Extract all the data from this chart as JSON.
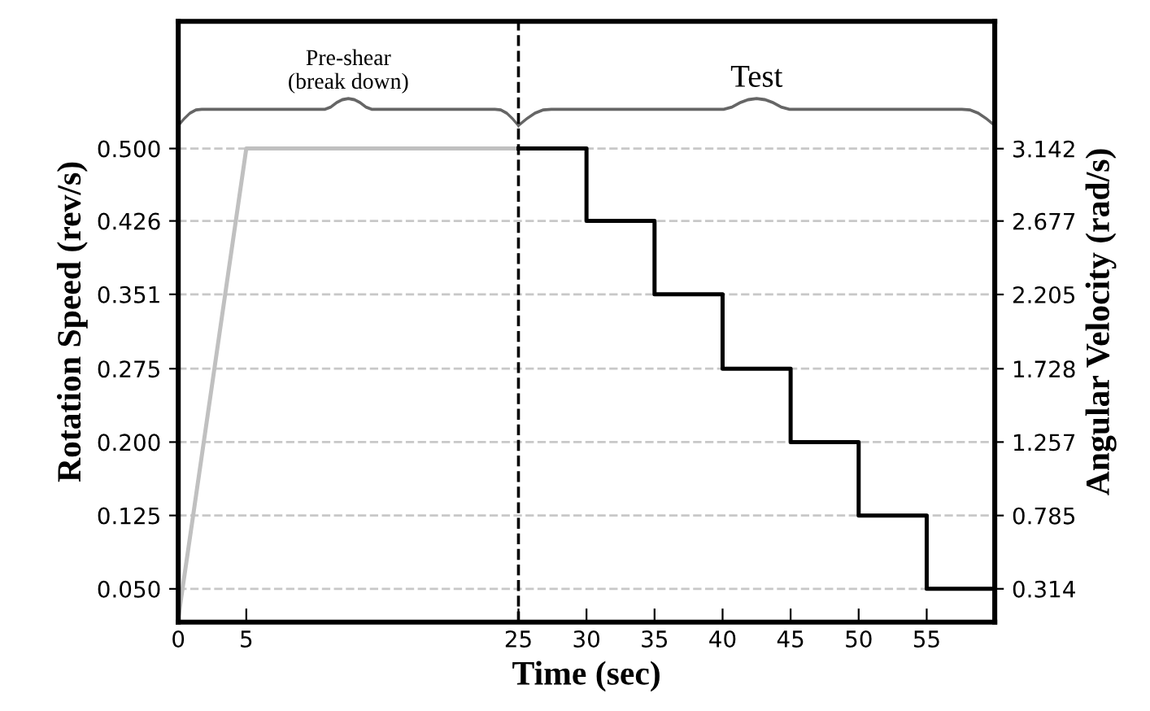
{
  "chart_data": {
    "type": "line",
    "xlabel": "Time (sec)",
    "ylabel": "Rotation Speed (rev/s)",
    "y2label": "Angular Velocity (rad/s)",
    "series": [
      {
        "color": "#c0c0c0",
        "x": [
          0,
          5,
          25
        ],
        "values": [
          0.02,
          0.5,
          0.5
        ]
      },
      {
        "type": "step",
        "color": "#000000",
        "x": [
          25,
          30,
          35,
          40,
          45,
          50,
          55,
          60
        ],
        "values": [
          0.5,
          0.426,
          0.351,
          0.275,
          0.2,
          0.125,
          0.05,
          0.05
        ]
      }
    ],
    "xlim": [
      0,
      60
    ],
    "xticks": [
      0,
      5,
      25,
      30,
      35,
      40,
      45,
      50,
      55
    ],
    "ylim": [
      0.016,
      0.63
    ],
    "yticks": [
      {
        "value": 0.05,
        "label": "0.050"
      },
      0.125,
      {
        "value": 0.2,
        "label": "0.200"
      },
      0.275,
      0.351,
      0.426,
      {
        "value": 0.5,
        "label": "0.500"
      }
    ],
    "y2lim": [
      0.1,
      3.96
    ],
    "y2ticks": [
      0.314,
      0.785,
      1.257,
      1.728,
      2.205,
      2.677,
      3.142
    ],
    "ref_lines": [
      {
        "axis": "x",
        "value": 25,
        "color": "#000000",
        "line_style": "dashed"
      }
    ],
    "annotations": [
      "Pre-shear\n(break down)",
      "Test"
    ],
    "grid": "y",
    "marker": "none",
    "line_style": "solid"
  }
}
